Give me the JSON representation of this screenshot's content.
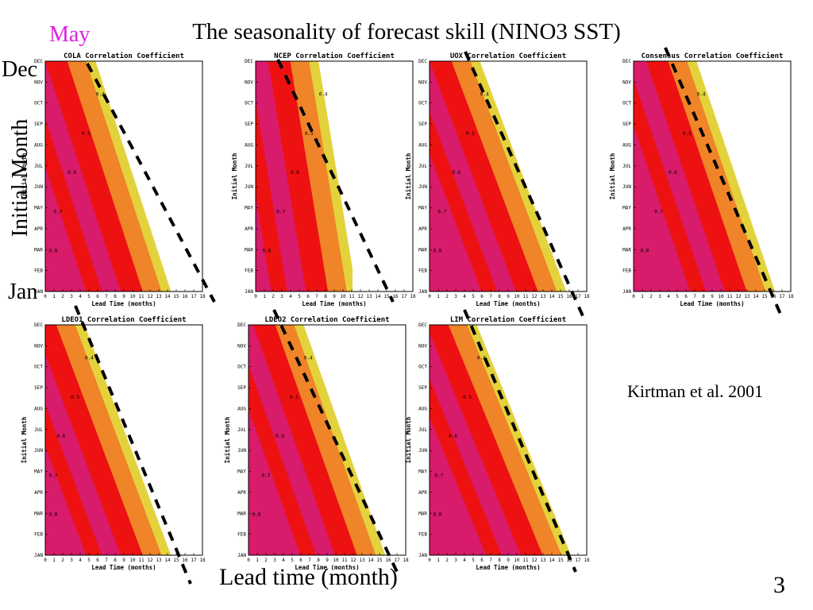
{
  "slide": {
    "title": "The seasonality of forecast skill (NINO3 SST)",
    "may_label": "May",
    "dec_label": "Dec",
    "jan_label": "Jan",
    "y_label": "Initial Month",
    "x_label": "Lead time (month)",
    "citation": "Kirtman et al. 2001",
    "page_number": "3"
  },
  "colors": {
    "magenta": "#d81b6a",
    "red": "#ee1111",
    "orange": "#ef8429",
    "yellow": "#e4d23c",
    "white": "#ffffff"
  },
  "chart_data": [
    {
      "type": "heatmap",
      "title": "COLA Correlation Coefficient",
      "xlabel": "Lead Time (months)",
      "ylabel": "Initial Month",
      "xlim": [
        0,
        18
      ],
      "x_ticks": [
        "0",
        "1",
        "2",
        "3",
        "4",
        "5",
        "6",
        "7",
        "8",
        "9",
        "10",
        "11",
        "12",
        "13",
        "14",
        "15",
        "16",
        "17",
        "18"
      ],
      "y_ticks": [
        "JAN",
        "FEB",
        "MAR",
        "APR",
        "MAY",
        "JUN",
        "JUL",
        "AUG",
        "SEP",
        "OCT",
        "NOV",
        "DEC"
      ],
      "levels": [
        0.4,
        0.5,
        0.6,
        0.7,
        0.8
      ]
    },
    {
      "type": "heatmap",
      "title": "NCEP Correlation Coefficient",
      "xlabel": "Lead Time (months)",
      "ylabel": "Initial Month",
      "xlim": [
        0,
        18
      ],
      "x_ticks": [
        "0",
        "1",
        "2",
        "3",
        "4",
        "5",
        "6",
        "7",
        "8",
        "9",
        "10",
        "11",
        "12",
        "13",
        "14",
        "15",
        "16",
        "17",
        "18"
      ],
      "y_ticks": [
        "JAN",
        "FEB",
        "MAR",
        "APR",
        "MAY",
        "JUN",
        "JUL",
        "AUG",
        "SEP",
        "OCT",
        "NOV",
        "DEC"
      ],
      "levels": [
        0.4,
        0.5,
        0.6,
        0.7,
        0.8
      ]
    },
    {
      "type": "heatmap",
      "title": "UOX Correlation Coefficient",
      "xlabel": "Lead Time (months)",
      "ylabel": "Initial Month",
      "xlim": [
        0,
        18
      ],
      "x_ticks": [
        "0",
        "1",
        "2",
        "3",
        "4",
        "5",
        "6",
        "7",
        "8",
        "9",
        "10",
        "11",
        "12",
        "13",
        "14",
        "15",
        "16",
        "17",
        "18"
      ],
      "y_ticks": [
        "JAN",
        "FEB",
        "MAR",
        "APR",
        "MAY",
        "JUN",
        "JUL",
        "AUG",
        "SEP",
        "OCT",
        "NOV",
        "DEC"
      ],
      "levels": [
        0.4,
        0.5,
        0.6,
        0.7,
        0.8
      ]
    },
    {
      "type": "heatmap",
      "title": "Consensus Correlation Coefficient",
      "xlabel": "Lead Time (months)",
      "ylabel": "Initial Month",
      "xlim": [
        0,
        18
      ],
      "x_ticks": [
        "0",
        "1",
        "2",
        "3",
        "4",
        "5",
        "6",
        "7",
        "8",
        "9",
        "10",
        "11",
        "12",
        "13",
        "14",
        "15",
        "16",
        "17",
        "18"
      ],
      "y_ticks": [
        "JAN",
        "FEB",
        "MAR",
        "APR",
        "MAY",
        "JUN",
        "JUL",
        "AUG",
        "SEP",
        "OCT",
        "NOV",
        "DEC"
      ],
      "levels": [
        0.4,
        0.5,
        0.6,
        0.7,
        0.8
      ]
    },
    {
      "type": "heatmap",
      "title": "LDEO1 Correlation Coefficient",
      "xlabel": "Lead Time (months)",
      "ylabel": "Initial Month",
      "xlim": [
        0,
        18
      ],
      "x_ticks": [
        "0",
        "1",
        "2",
        "3",
        "4",
        "5",
        "6",
        "7",
        "8",
        "9",
        "10",
        "11",
        "12",
        "13",
        "14",
        "15",
        "16",
        "17",
        "18"
      ],
      "y_ticks": [
        "JAN",
        "FEB",
        "MAR",
        "APR",
        "MAY",
        "JUN",
        "JUL",
        "AUG",
        "SEP",
        "OCT",
        "NOV",
        "DEC"
      ],
      "levels": [
        0.4,
        0.5,
        0.6,
        0.7,
        0.8
      ]
    },
    {
      "type": "heatmap",
      "title": "LDEO2 Correlation Coefficient",
      "xlabel": "Lead Time (months)",
      "ylabel": "Initial Month",
      "xlim": [
        0,
        18
      ],
      "x_ticks": [
        "0",
        "1",
        "2",
        "3",
        "4",
        "5",
        "6",
        "7",
        "8",
        "9",
        "10",
        "11",
        "12",
        "13",
        "14",
        "15",
        "16",
        "17",
        "18"
      ],
      "y_ticks": [
        "JAN",
        "FEB",
        "MAR",
        "APR",
        "MAY",
        "JUN",
        "JUL",
        "AUG",
        "SEP",
        "OCT",
        "NOV",
        "DEC"
      ],
      "levels": [
        0.4,
        0.5,
        0.6,
        0.7,
        0.8
      ]
    },
    {
      "type": "heatmap",
      "title": "LIM Correlation Coefficient",
      "xlabel": "Lead Time (months)",
      "ylabel": "Initial Month",
      "xlim": [
        0,
        18
      ],
      "x_ticks": [
        "0",
        "1",
        "2",
        "3",
        "4",
        "5",
        "6",
        "7",
        "8",
        "9",
        "10",
        "11",
        "12",
        "13",
        "14",
        "15",
        "16",
        "17",
        "18"
      ],
      "y_ticks": [
        "JAN",
        "FEB",
        "MAR",
        "APR",
        "MAY",
        "JUN",
        "JUL",
        "AUG",
        "SEP",
        "OCT",
        "NOV",
        "DEC"
      ],
      "levels": [
        0.4,
        0.5,
        0.6,
        0.7,
        0.8
      ]
    }
  ]
}
